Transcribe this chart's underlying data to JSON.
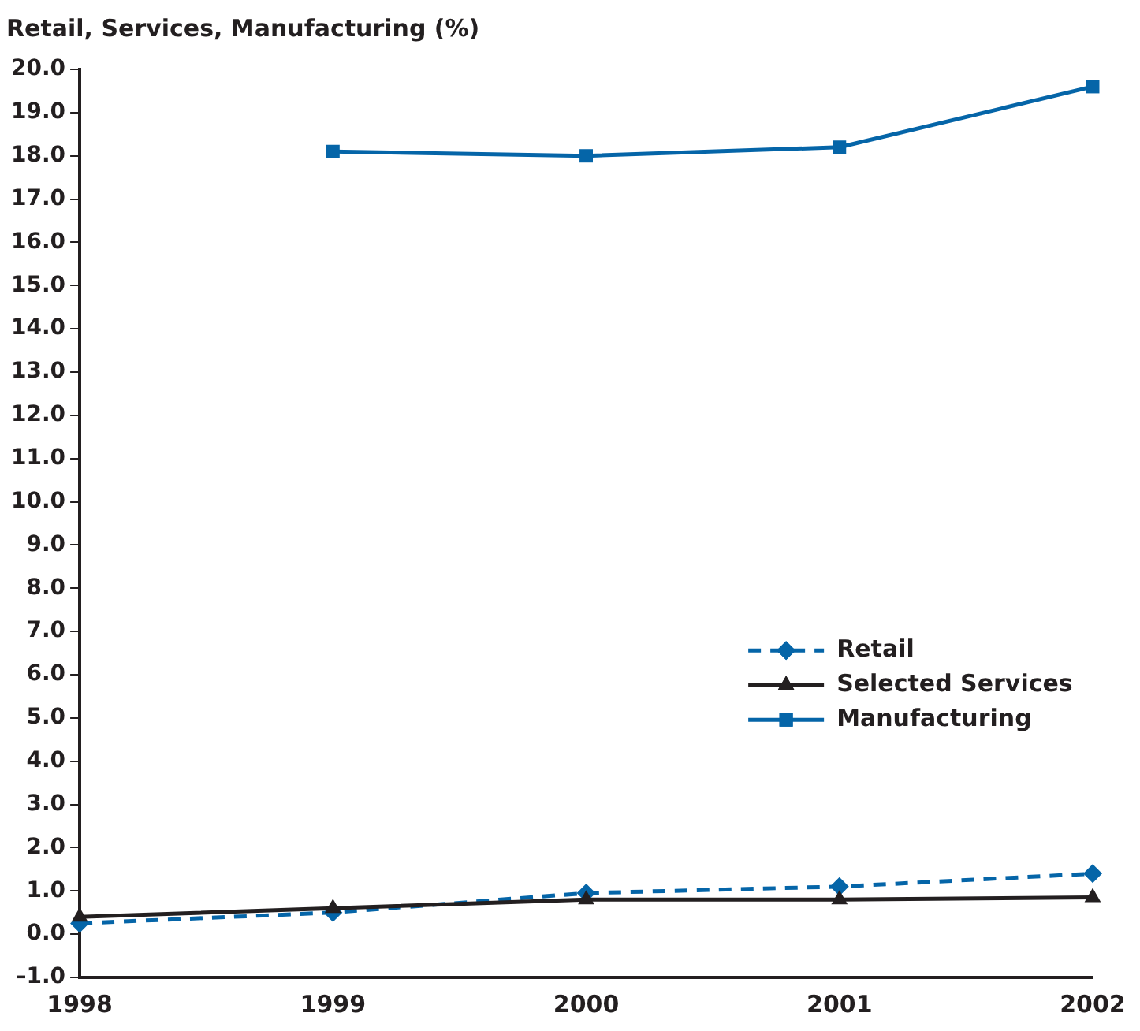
{
  "chart_data": {
    "type": "line",
    "ylabel": "Retail, Services, Manufacturing (%)",
    "categories": [
      "1998",
      "1999",
      "2000",
      "2001",
      "2002"
    ],
    "series": [
      {
        "name": "Retail",
        "color": "#0565a8",
        "values": [
          0.25,
          0.5,
          0.95,
          1.1,
          1.4
        ],
        "marker": "diamond",
        "line_style": "dashed"
      },
      {
        "name": "Selected Services",
        "color": "#231f20",
        "values": [
          0.4,
          0.6,
          0.8,
          0.8,
          0.85
        ],
        "marker": "triangle",
        "line_style": "solid"
      },
      {
        "name": "Manufacturing",
        "color": "#0565a8",
        "values": [
          null,
          18.1,
          18.0,
          18.2,
          19.6
        ],
        "marker": "square",
        "line_style": "solid"
      }
    ],
    "ylim": [
      -1,
      20
    ],
    "yticks": [
      {
        "value": -1,
        "label": "–1.0"
      },
      {
        "value": 0,
        "label": "0.0"
      },
      {
        "value": 1,
        "label": "1.0"
      },
      {
        "value": 2,
        "label": "2.0"
      },
      {
        "value": 3,
        "label": "3.0"
      },
      {
        "value": 4,
        "label": "4.0"
      },
      {
        "value": 5,
        "label": "5.0"
      },
      {
        "value": 6,
        "label": "6.0"
      },
      {
        "value": 7,
        "label": "7.0"
      },
      {
        "value": 8,
        "label": "8.0"
      },
      {
        "value": 9,
        "label": "9.0"
      },
      {
        "value": 10,
        "label": "10.0"
      },
      {
        "value": 11,
        "label": "11.0"
      },
      {
        "value": 12,
        "label": "12.0"
      },
      {
        "value": 13,
        "label": "13.0"
      },
      {
        "value": 14,
        "label": "14.0"
      },
      {
        "value": 15,
        "label": "15.0"
      },
      {
        "value": 16,
        "label": "16.0"
      },
      {
        "value": 17,
        "label": "17.0"
      },
      {
        "value": 18,
        "label": "18.0"
      },
      {
        "value": 19,
        "label": "19.0"
      },
      {
        "value": 20,
        "label": "20.0"
      }
    ],
    "grid": false,
    "legend": "right"
  }
}
